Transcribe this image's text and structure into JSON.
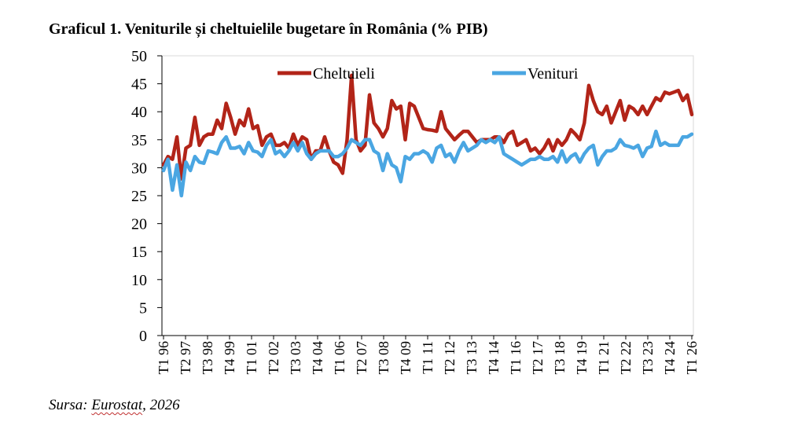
{
  "title": "Graficul 1. Veniturile și cheltuielile bugetare în România (% PIB)",
  "source": {
    "prefix": "Sursa: ",
    "org": "Eurostat",
    "suffix": ", 2026"
  },
  "chart_data": {
    "type": "line",
    "ylim": [
      0,
      50
    ],
    "yticks": [
      0,
      5,
      10,
      15,
      20,
      25,
      30,
      35,
      40,
      45,
      50
    ],
    "xlabel": "",
    "ylabel": "",
    "grid": false,
    "legend_position": "top",
    "x_tick_labels": [
      "T1 96",
      "T2 97",
      "T3 98",
      "T4 99",
      "T1 01",
      "T2 02",
      "T3 03",
      "T4 04",
      "T1 06",
      "T2 07",
      "T3 08",
      "T4 09",
      "T1 11",
      "T2 12",
      "T3 13",
      "T4 14",
      "T1 16",
      "T2 17",
      "T3 18",
      "T4 19",
      "T1 21",
      "T2 22",
      "T3 23",
      "T4 24",
      "T1 26"
    ],
    "series": [
      {
        "name": "Cheltuieli",
        "color": "#b22418",
        "values": [
          30.5,
          32,
          31.5,
          35.5,
          28,
          33.5,
          34,
          39,
          34,
          35.5,
          36,
          36,
          38.5,
          37,
          41.5,
          39,
          36,
          38.5,
          37.5,
          40.5,
          37,
          37.5,
          34,
          35.5,
          36,
          34,
          34,
          34.5,
          33.5,
          36,
          34,
          35.5,
          35,
          31.5,
          33,
          33,
          35.5,
          33,
          31,
          30.5,
          29,
          35,
          46.5,
          35,
          33,
          34,
          43,
          38,
          37,
          35.5,
          37,
          42,
          40.5,
          41,
          35,
          41.5,
          41,
          39,
          37,
          36.8,
          36.7,
          36.5,
          40,
          37,
          36,
          35,
          35.8,
          36.5,
          36.5,
          35.5,
          34.5,
          35,
          35,
          35,
          35.5,
          35.5,
          34.5,
          36,
          36.5,
          34,
          34.5,
          35,
          33,
          33.5,
          32.5,
          33.5,
          35,
          33,
          35,
          34,
          35,
          36.8,
          36,
          35,
          38,
          44.7,
          42,
          40,
          39.5,
          41,
          38,
          40,
          42,
          38.5,
          41,
          40.5,
          39.5,
          41,
          39.5,
          41,
          42.5,
          42,
          43.5,
          43.2,
          43.5,
          43.8,
          42,
          43,
          39.5
        ]
      },
      {
        "name": "Venituri",
        "color": "#4aa6e2",
        "values": [
          29.5,
          31.5,
          26,
          30.5,
          25,
          31,
          29.5,
          32,
          31,
          30.8,
          33,
          32.8,
          32.5,
          34.5,
          35.5,
          33.5,
          33.5,
          33.8,
          32.5,
          34.5,
          33,
          32.8,
          32,
          34,
          35,
          32.5,
          33,
          32,
          33,
          34.5,
          33,
          34.5,
          32.5,
          31.5,
          32.5,
          33,
          33,
          33,
          32,
          32,
          32.5,
          33.5,
          35,
          34.5,
          34,
          35,
          35,
          33,
          32.5,
          29.5,
          32.5,
          30.5,
          30,
          27.5,
          32,
          31.5,
          32.5,
          32.5,
          33,
          32.5,
          31,
          33.5,
          34,
          32,
          32.5,
          31,
          33,
          34.5,
          33,
          33.5,
          34,
          35,
          34.5,
          35,
          34.5,
          35.5,
          32.5,
          32,
          31.5,
          31,
          30.5,
          31,
          31.5,
          31.5,
          32,
          31.5,
          31.5,
          32,
          31,
          33,
          31,
          32,
          32.5,
          31,
          32.5,
          33.5,
          34,
          30.5,
          32,
          33,
          33,
          33.5,
          35,
          34,
          33.8,
          33.5,
          34,
          32,
          33.5,
          33.8,
          36.5,
          34,
          34.5,
          34,
          34,
          34,
          35.5,
          35.5,
          36
        ]
      }
    ]
  }
}
